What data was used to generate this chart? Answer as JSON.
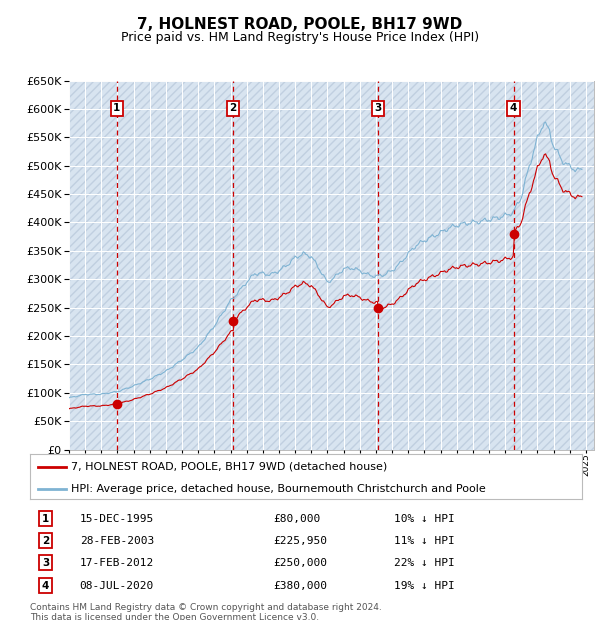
{
  "title": "7, HOLNEST ROAD, POOLE, BH17 9WD",
  "subtitle": "Price paid vs. HM Land Registry's House Price Index (HPI)",
  "ylim": [
    0,
    650000
  ],
  "yticks": [
    0,
    50000,
    100000,
    150000,
    200000,
    250000,
    300000,
    350000,
    400000,
    450000,
    500000,
    550000,
    600000,
    650000
  ],
  "xlim_start": 1993.0,
  "xlim_end": 2025.5,
  "background_color": "#ffffff",
  "plot_bg_color": "#e8f0f8",
  "grid_color": "#ffffff",
  "legend_label_house": "7, HOLNEST ROAD, POOLE, BH17 9WD (detached house)",
  "legend_label_hpi": "HPI: Average price, detached house, Bournemouth Christchurch and Poole",
  "footnote": "Contains HM Land Registry data © Crown copyright and database right 2024.\nThis data is licensed under the Open Government Licence v3.0.",
  "sale_points": [
    {
      "num": 1,
      "year": 1995.958,
      "price": 80000,
      "date": "15-DEC-1995",
      "pct": "10% ↓ HPI"
    },
    {
      "num": 2,
      "year": 2003.167,
      "price": 225950,
      "date": "28-FEB-2003",
      "pct": "11% ↓ HPI"
    },
    {
      "num": 3,
      "year": 2012.125,
      "price": 250000,
      "date": "17-FEB-2012",
      "pct": "22% ↓ HPI"
    },
    {
      "num": 4,
      "year": 2020.52,
      "price": 380000,
      "date": "08-JUL-2020",
      "pct": "19% ↓ HPI"
    }
  ],
  "sale_color": "#cc0000",
  "hpi_line_color": "#7fb3d3",
  "house_line_color": "#cc0000",
  "dashed_line_color": "#cc0000",
  "table_box_color": "#cc0000",
  "title_fontsize": 11,
  "subtitle_fontsize": 9,
  "tick_fontsize": 8,
  "legend_fontsize": 8,
  "table_fontsize": 8
}
